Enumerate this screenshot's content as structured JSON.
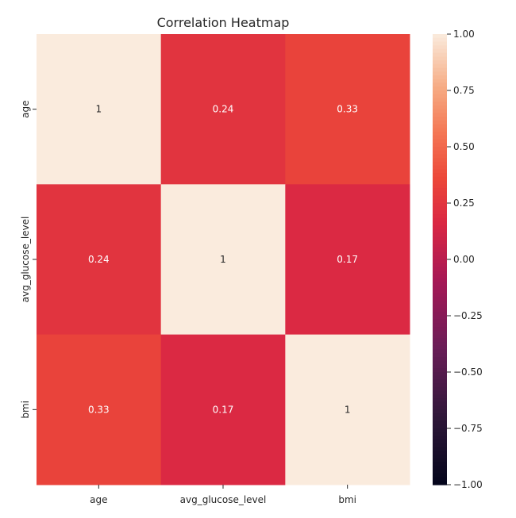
{
  "chart_data": {
    "type": "heatmap",
    "title": "Correlation Heatmap",
    "x_categories": [
      "age",
      "avg_glucose_level",
      "bmi"
    ],
    "y_categories": [
      "age",
      "avg_glucose_level",
      "bmi"
    ],
    "values": [
      [
        1,
        0.24,
        0.33
      ],
      [
        0.24,
        1,
        0.17
      ],
      [
        0.33,
        0.17,
        1
      ]
    ],
    "annotations": [
      [
        "1",
        "0.24",
        "0.33"
      ],
      [
        "0.24",
        "1",
        "0.17"
      ],
      [
        "0.33",
        "0.17",
        "1"
      ]
    ],
    "colorbar": {
      "vmin": -1.0,
      "vmax": 1.0,
      "ticks": [
        1.0,
        0.75,
        0.5,
        0.25,
        0.0,
        -0.25,
        -0.5,
        -0.75,
        -1.0
      ],
      "tick_labels": [
        "1.00",
        "0.75",
        "0.50",
        "0.25",
        "0.00",
        "−0.25",
        "−0.50",
        "−0.75",
        "−1.00"
      ],
      "colormap": "rocket"
    }
  }
}
